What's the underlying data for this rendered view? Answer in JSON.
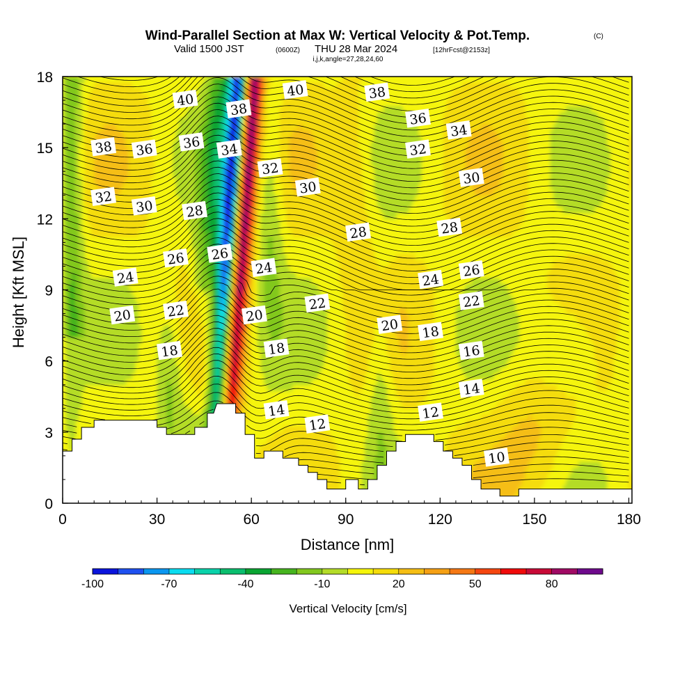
{
  "header": {
    "title": "Wind-Parallel Section at Max W: Vertical Velocity & Pot.Temp.",
    "copyright": "(C)",
    "valid_prefix": "Valid 1500 JST",
    "valid_utc": "(0600Z)",
    "valid_date": "THU 28 Mar 2024",
    "forecast": "[12hrFcst@2153z]",
    "indices": "i,j,k,angle=27,28,24,60"
  },
  "chart_data": {
    "type": "heatmap",
    "xlabel": "Distance [nm]",
    "ylabel": "Height [Kft MSL]",
    "xlim": [
      0,
      181
    ],
    "ylim": [
      0,
      18
    ],
    "x_ticks": [
      "0",
      "30",
      "60",
      "90",
      "120",
      "150",
      "180"
    ],
    "y_ticks": [
      "0",
      "3",
      "6",
      "9",
      "12",
      "15",
      "18"
    ],
    "colorbar": {
      "label": "Vertical Velocity [cm/s]",
      "tick_labels": [
        "-100",
        "-70",
        "-40",
        "-10",
        "20",
        "50",
        "80"
      ],
      "levels": [
        -100,
        -90,
        -80,
        -70,
        -60,
        -50,
        -40,
        -30,
        -20,
        -10,
        0,
        10,
        20,
        30,
        40,
        50,
        60,
        70,
        80,
        90
      ],
      "colors": [
        "#0a14dc",
        "#1e50f0",
        "#0a96f0",
        "#0adcf0",
        "#0ad2aa",
        "#0abe6e",
        "#0aa532",
        "#46b41e",
        "#82c81e",
        "#b4dc28",
        "#f5f50a",
        "#f5dc0a",
        "#f5be14",
        "#f5a014",
        "#f57814",
        "#f5460f",
        "#f00a0a",
        "#c80a37",
        "#a00a64",
        "#6e0a8c"
      ]
    },
    "updraft_max_cm_s": 90,
    "downdraft_min_cm_s": -100,
    "terrain_profile": {
      "x_nm": [
        0,
        3,
        3,
        6,
        6,
        10,
        10,
        30,
        30,
        33,
        33,
        42,
        42,
        46,
        46,
        48,
        48,
        49,
        49,
        55,
        55,
        58,
        58,
        61,
        61,
        64,
        64,
        66,
        66,
        70,
        70,
        75,
        75,
        78,
        78,
        81,
        81,
        84,
        84,
        90,
        90,
        94,
        94,
        97,
        97,
        100,
        100,
        103,
        103,
        106,
        106,
        109,
        109,
        118,
        118,
        121,
        121,
        124,
        124,
        127,
        127,
        130,
        130,
        133,
        133,
        139,
        139,
        142,
        142,
        145,
        145,
        155,
        155,
        181
      ],
      "height_kft": [
        2.2,
        2.2,
        2.7,
        2.7,
        3.2,
        3.2,
        3.5,
        3.5,
        3.2,
        3.2,
        2.9,
        2.9,
        3.2,
        3.2,
        3.8,
        3.8,
        3.8,
        4.2,
        4.2,
        4.2,
        3.8,
        3.8,
        2.9,
        2.9,
        1.9,
        1.9,
        2.2,
        2.2,
        2.2,
        2.2,
        1.9,
        1.9,
        1.6,
        1.6,
        1.3,
        1.3,
        1.0,
        1.0,
        0.6,
        0.6,
        1.0,
        1.0,
        0.6,
        0.6,
        1.0,
        1.0,
        1.6,
        1.6,
        2.2,
        2.2,
        2.6,
        2.6,
        2.9,
        2.9,
        2.6,
        2.6,
        2.2,
        2.2,
        1.9,
        1.9,
        1.6,
        1.6,
        1.0,
        1.0,
        0.6,
        0.6,
        0.3,
        0.3,
        0.3,
        0.3,
        0.6,
        0.6,
        0.6,
        0.6
      ]
    },
    "isentrope_values_c": [
      10,
      12,
      14,
      16,
      18,
      20,
      22,
      24,
      26,
      28,
      30,
      32,
      34,
      36,
      38,
      40
    ],
    "isentrope_label_anchors": [
      {
        "text": "40",
        "x": 39,
        "y": 17.0
      },
      {
        "text": "38",
        "x": 56,
        "y": 16.6
      },
      {
        "text": "40",
        "x": 74,
        "y": 17.4
      },
      {
        "text": "38",
        "x": 100,
        "y": 17.3
      },
      {
        "text": "36",
        "x": 113,
        "y": 16.2
      },
      {
        "text": "34",
        "x": 126,
        "y": 15.7
      },
      {
        "text": "38",
        "x": 13,
        "y": 15.0
      },
      {
        "text": "36",
        "x": 26,
        "y": 14.9
      },
      {
        "text": "36",
        "x": 41,
        "y": 15.2
      },
      {
        "text": "34",
        "x": 53,
        "y": 14.9
      },
      {
        "text": "32",
        "x": 66,
        "y": 14.1
      },
      {
        "text": "32",
        "x": 113,
        "y": 14.9
      },
      {
        "text": "30",
        "x": 78,
        "y": 13.3
      },
      {
        "text": "30",
        "x": 130,
        "y": 13.7
      },
      {
        "text": "32",
        "x": 13,
        "y": 12.9
      },
      {
        "text": "30",
        "x": 26,
        "y": 12.5
      },
      {
        "text": "28",
        "x": 42,
        "y": 12.3
      },
      {
        "text": "28",
        "x": 94,
        "y": 11.4
      },
      {
        "text": "28",
        "x": 123,
        "y": 11.6
      },
      {
        "text": "26",
        "x": 50,
        "y": 10.5
      },
      {
        "text": "26",
        "x": 36,
        "y": 10.3
      },
      {
        "text": "24",
        "x": 64,
        "y": 9.9
      },
      {
        "text": "26",
        "x": 130,
        "y": 9.8
      },
      {
        "text": "24",
        "x": 20,
        "y": 9.5
      },
      {
        "text": "24",
        "x": 117,
        "y": 9.4
      },
      {
        "text": "22",
        "x": 130,
        "y": 8.5
      },
      {
        "text": "22",
        "x": 81,
        "y": 8.4
      },
      {
        "text": "22",
        "x": 36,
        "y": 8.1
      },
      {
        "text": "20",
        "x": 61,
        "y": 7.9
      },
      {
        "text": "20",
        "x": 19,
        "y": 7.9
      },
      {
        "text": "20",
        "x": 104,
        "y": 7.5
      },
      {
        "text": "18",
        "x": 117,
        "y": 7.2
      },
      {
        "text": "18",
        "x": 34,
        "y": 6.4
      },
      {
        "text": "18",
        "x": 68,
        "y": 6.5
      },
      {
        "text": "16",
        "x": 130,
        "y": 6.4
      },
      {
        "text": "14",
        "x": 130,
        "y": 4.8
      },
      {
        "text": "14",
        "x": 68,
        "y": 3.9
      },
      {
        "text": "12",
        "x": 117,
        "y": 3.8
      },
      {
        "text": "12",
        "x": 81,
        "y": 3.3
      },
      {
        "text": "10",
        "x": 138,
        "y": 1.9
      }
    ]
  }
}
